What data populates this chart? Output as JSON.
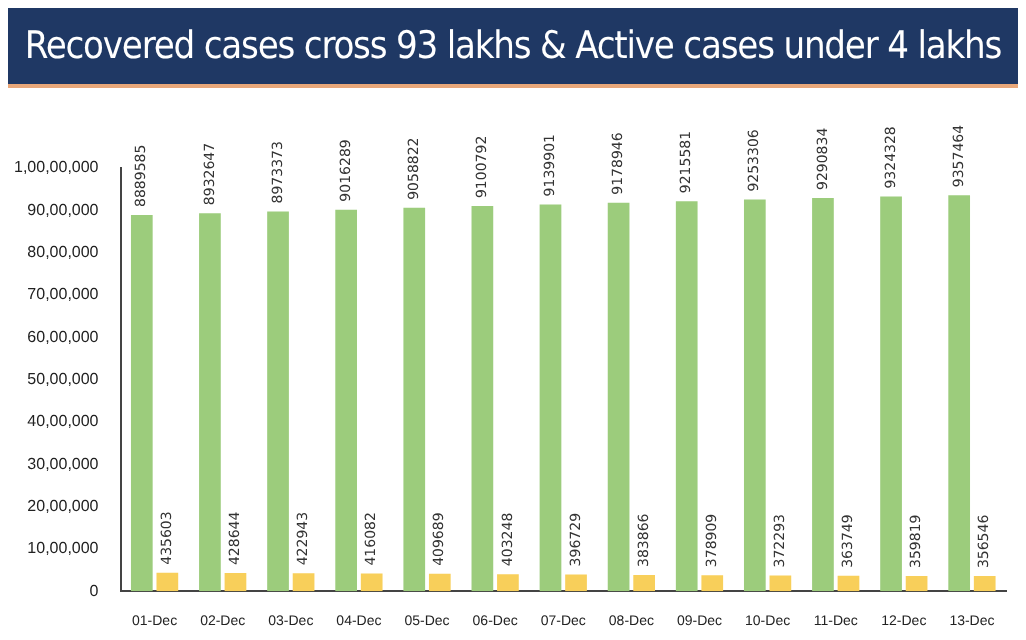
{
  "chart_data": {
    "type": "bar",
    "title": "Recovered cases cross 93 lakhs & Active cases under 4 lakhs",
    "categories": [
      "01-Dec",
      "02-Dec",
      "03-Dec",
      "04-Dec",
      "05-Dec",
      "06-Dec",
      "07-Dec",
      "08-Dec",
      "09-Dec",
      "10-Dec",
      "11-Dec",
      "12-Dec",
      "13-Dec"
    ],
    "series": [
      {
        "color": "#9ccc7c",
        "values": [
          8889585,
          8932647,
          8973373,
          9016289,
          9058822,
          9100792,
          9139901,
          9178946,
          9215581,
          9253306,
          9290834,
          9324328,
          9357464
        ]
      },
      {
        "color": "#f8cf5a",
        "values": [
          435603,
          428644,
          422943,
          416082,
          409689,
          403248,
          396729,
          383866,
          378909,
          372293,
          363749,
          359819,
          356546
        ]
      }
    ],
    "ylim": [
      0,
      10000000
    ],
    "yticks": [
      0,
      {
        "value": 1000000,
        "label": "10,00,000"
      },
      {
        "value": 2000000,
        "label": "20,00,000"
      },
      {
        "value": 3000000,
        "label": "30,00,000"
      },
      {
        "value": 4000000,
        "label": "40,00,000"
      },
      {
        "value": 5000000,
        "label": "50,00,000"
      },
      {
        "value": 6000000,
        "label": "60,00,000"
      },
      {
        "value": 7000000,
        "label": "70,00,000"
      },
      {
        "value": 8000000,
        "label": "80,00,000"
      },
      {
        "value": 9000000,
        "label": "90,00,000"
      },
      {
        "value": 10000000,
        "label": "1,00,00,000"
      }
    ],
    "grid": false,
    "legend": false,
    "data_labels": true
  }
}
